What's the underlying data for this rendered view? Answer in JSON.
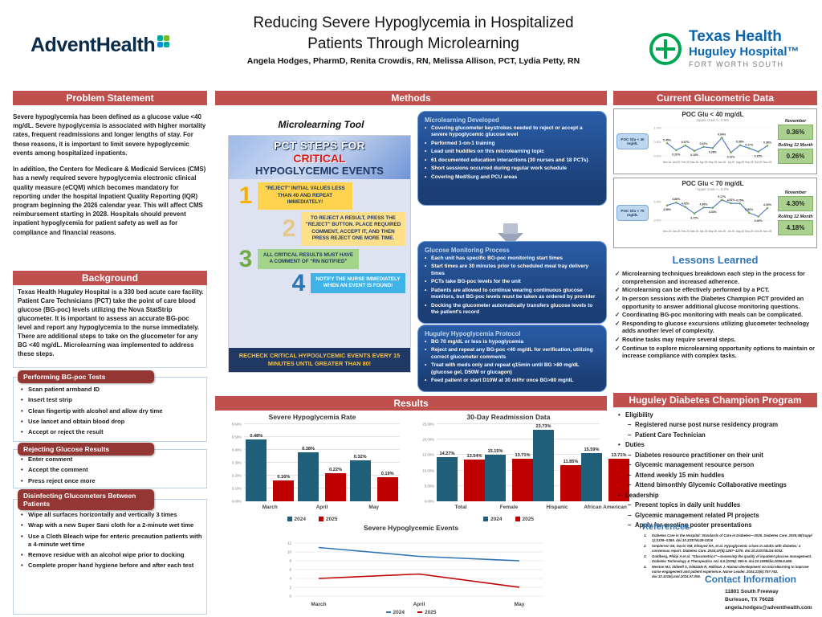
{
  "header": {
    "title_line1": "Reducing Severe Hypoglycemia in Hospitalized",
    "title_line2": "Patients Through Microlearning",
    "authors": "Angela Hodges, PharmD, Renita Crowdis, RN, Melissa Allison, PCT, Lydia Petty, RN",
    "logo_left": {
      "name": "AdventHealth"
    },
    "logo_right": {
      "line1": "Texas Health",
      "line2": "Huguley Hospital™",
      "line3": "FORT WORTH SOUTH"
    }
  },
  "colors": {
    "accent_red": "#c0504d",
    "dark_red": "#943634",
    "navy": "#1f3864",
    "blue_heading": "#2e74b5",
    "bar_2024": "#1f5f7a",
    "bar_2025": "#c00000",
    "line_2024": "#2e75b6",
    "line_2025": "#c00000",
    "line_blue": "#4472c4",
    "marker_green": "#70ad47",
    "stat_green": "#a9d08e"
  },
  "problem_statement": {
    "title": "Problem Statement",
    "para1": "Severe hypoglycemia has been defined as a glucose value <40 mg/dL. Severe hypoglycemia is associated with higher mortality rates, frequent readmissions and longer lengths of stay. For these reasons, it is important to limit severe hypoglycemic events among hospitalized inpatients.",
    "para2": "In addition, the Centers for Medicare & Medicaid Services (CMS) has a newly required severe hypoglycemia electronic clinical quality measure (eCQM) which becomes mandatory for reporting under the hospital Inpatient Quality Reporting (IQR) program beginning the 2026 calendar year. This will affect CMS reimbursement starting in 2028. Hospitals should prevent inpatient hypoglycemia for patient safety as well as for compliance and financial reasons."
  },
  "background": {
    "title": "Background",
    "text": "Texas Health Huguley Hospital is a 330 bed acute care facility. Patient Care Technicians (PCT) take the point of care blood glucose (BG-poc) levels utilizing the Nova StatStrip glucometer. It is important to assess an accurate BG-poc level and report any hypoglycemia to the nurse immediately. There are additional steps to take on the glucometer for any BG <40 mg/dL. Microlearning was implemented to address these steps."
  },
  "procedures": [
    {
      "title": "Performing BG-poc Tests",
      "bullets": [
        "Scan patient armband ID",
        "Insert test strip",
        "Clean fingertip with alcohol and allow dry time",
        "Use lancet and obtain blood drop",
        "Accept or reject the result"
      ]
    },
    {
      "title": "Rejecting Glucose Results",
      "bullets": [
        "Enter comment",
        "Accept the comment",
        "Press reject once more"
      ]
    },
    {
      "title": "Disinfecting Glucometers Between Patients",
      "bullets": [
        "Wipe all surfaces horizontally and vertically 3 times",
        "Wrap with a new Super Sani cloth for a 2-minute wet time",
        "Use a Cloth Bleach wipe for enteric precaution patients with a 4-minute wet time",
        "Remove residue with an alcohol wipe prior to docking",
        "Complete proper hand hygiene before and after each test"
      ]
    }
  ],
  "methods": {
    "title": "Methods",
    "tool_heading": "Microlearning Tool",
    "tool": {
      "header_line1": "PCT STEPS FOR",
      "header_line2": "CRITICAL",
      "header_line3": "HYPOGLYCEMIC EVENTS",
      "steps": [
        {
          "num": "1",
          "text": "\"REJECT\" INITIAL VALUES LESS THAN 40 AND REPEAT IMMEDIATELY!"
        },
        {
          "num": "2",
          "text": "TO REJECT A RESULT, PRESS THE \"REJECT\" BUTTON. PLACE REQUIRED COMMENT, ACCEPT IT, AND THEN PRESS REJECT ONE MORE TIME."
        },
        {
          "num": "3",
          "text": "ALL CRITICAL RESULTS MUST HAVE A COMMENT OF \"RN NOTIFIED\""
        },
        {
          "num": "4",
          "text": "NOTIFY THE NURSE IMMEDIATELY WHEN AN EVENT IS FOUND!"
        }
      ],
      "footer": "RECHECK CRITICAL HYPOGLYCEMIC EVENTS EVERY 15 MINUTES UNTIL GREATER THAN 80!"
    },
    "boxes": [
      {
        "title": "Microlearning Developed",
        "bullets": [
          "Covering glucometer keystrokes needed to reject or accept a severe hypoglycemic glucose level",
          "Performed 1-on-1 training",
          "Lead unit huddles on this microlearning topic",
          "61 documented education interactions (30 nurses and 18 PCTs)",
          "Short sessions occurred during regular work schedule",
          "Covering Med/Surg and PCU areas"
        ]
      },
      {
        "title": "Glucose Monitoring Process",
        "bullets": [
          "Each unit has specific BG-poc monitoring start times",
          "Start times are 30 minutes prior to scheduled meal tray delivery times",
          "PCTs take BG-poc levels for the unit",
          "Patients are allowed to continue wearing continuous glucose monitors, but BG-poc levels must be taken as ordered by provider",
          "Docking the glucometer automatically transfers glucose levels to the patient's record"
        ]
      },
      {
        "title": "Huguley Hypoglycemia Protocol",
        "bullets": [
          "BG 70 mg/dL or less is hypoglycemia",
          "Reject and repeat any BG-poc <40 mg/dL for verification, utilizing correct glucometer comments",
          "Treat with meds only and repeat q15min until BG >80 mg/dL (glucose gel, D50W or glucagon)",
          "Feed patient or start D10W at 30 ml/hr once BG>80 mg/dL"
        ]
      }
    ]
  },
  "results": {
    "title": "Results"
  },
  "glucometric": {
    "title": "Current Glucometric Data"
  },
  "chart_data": [
    {
      "id": "poc40",
      "type": "line",
      "title": "POC Glu < 40 mg/dL",
      "subtitle": "Upper Goal <=  0.5%",
      "side_label": "POC Glu < 40 mg/dL",
      "x": [
        "Dec-24",
        "Jan-25",
        "Feb-25",
        "Mar-25",
        "Apr-25",
        "May-25",
        "Jun-25",
        "Jul-25",
        "Aug-25",
        "Sep-25",
        "Oct-25",
        "Nov-25"
      ],
      "series": [
        {
          "name": "POC Glu < 40 mg/dL",
          "values": [
            0.45,
            0.2,
            0.37,
            0.18,
            0.32,
            0.28,
            0.64,
            0.12,
            0.38,
            0.27,
            0.15,
            0.36
          ]
        }
      ],
      "ylim": [
        0.0,
        1.0
      ],
      "yticks": [
        0.0,
        0.5,
        1.0
      ],
      "goal": 0.5,
      "legend_position": "none",
      "grid": true,
      "stats": [
        {
          "label": "November",
          "value": "0.36%"
        },
        {
          "label": "Rolling 12 Month",
          "value": "0.26%"
        }
      ]
    },
    {
      "id": "poc70",
      "type": "line",
      "title": "POC Glu < 70 mg/dL",
      "subtitle": "Upper Goal <=  5.0%",
      "side_label": "POC Glu < 70 mg/dL",
      "x": [
        "Dec-24",
        "Jan-25",
        "Feb-25",
        "Mar-25",
        "Apr-25",
        "May-25",
        "Jun-25",
        "Jul-25",
        "Aug-25",
        "Sep-25",
        "Oct-25",
        "Nov-25"
      ],
      "series": [
        {
          "name": "POC Glu < 70 mg/dL",
          "values": [
            4.58,
            4.88,
            4.42,
            3.72,
            4.36,
            4.33,
            5.17,
            4.81,
            4.79,
            3.8,
            3.4,
            4.3
          ]
        }
      ],
      "ylim": [
        2.5,
        5.5
      ],
      "yticks": [
        3.0,
        5.0
      ],
      "goal": 5.0,
      "legend_position": "none",
      "grid": true,
      "stats": [
        {
          "label": "November",
          "value": "4.30%"
        },
        {
          "label": "Rolling 12 Month",
          "value": "4.18%"
        }
      ]
    },
    {
      "id": "rate",
      "type": "bar",
      "title": "Severe Hypoglycemia Rate",
      "categories": [
        "March",
        "April",
        "May"
      ],
      "series": [
        {
          "name": "2024",
          "values": [
            0.48,
            0.38,
            0.32
          ]
        },
        {
          "name": "2025",
          "values": [
            0.16,
            0.22,
            0.19
          ]
        }
      ],
      "ylim": [
        0,
        0.6
      ],
      "ystep": 0.1,
      "value_suffix": "%",
      "decimals": 2,
      "grid": true,
      "legend_position": "bottom"
    },
    {
      "id": "readmission",
      "type": "bar",
      "title": "30-Day Readmission Data",
      "categories": [
        "Total",
        "Female",
        "Hispanic",
        "African American"
      ],
      "series": [
        {
          "name": "2024",
          "values": [
            14.27,
            15.15,
            23.73,
            15.59
          ]
        },
        {
          "name": "2025",
          "values": [
            13.54,
            13.71,
            11.85,
            13.71
          ]
        }
      ],
      "ylim": [
        0,
        25
      ],
      "ystep": 5,
      "value_suffix": "%",
      "decimals": 2,
      "grid": true,
      "legend_position": "bottom"
    },
    {
      "id": "events",
      "type": "line",
      "title": "Severe Hypoglycemic Events",
      "x": [
        "March",
        "April",
        "May"
      ],
      "series": [
        {
          "name": "2024",
          "values": [
            11,
            9,
            8
          ]
        },
        {
          "name": "2025",
          "values": [
            4,
            5,
            2
          ]
        }
      ],
      "ylim": [
        0,
        12
      ],
      "ystep": 2,
      "grid": true,
      "legend_position": "bottom"
    }
  ],
  "lessons": {
    "title": "Lessons Learned",
    "items": [
      "Microlearning techniques breakdown each step in the process for comprehension and increased adherence.",
      "Microlearning can be effectively performed by a PCT.",
      "In-person sessions with the Diabetes Champion PCT provided an opportunity to answer additional glucose monitoring questions.",
      "Coordinating BG-poc monitoring with meals can be complicated.",
      "Responding to glucose excursions utilizing glucometer technology adds another level of complexity.",
      "Routine tasks may require several steps.",
      "Continue to explore microlearning opportunity options to maintain or increase compliance with complex tasks."
    ]
  },
  "program": {
    "title": "Huguley Diabetes Champion Program",
    "groups": [
      {
        "label": "Eligibility",
        "items": [
          "Registered nurse post nurse residency program",
          "Patient Care Technician"
        ]
      },
      {
        "label": "Duties",
        "items": [
          "Diabetes resource practitioner on their unit",
          "Glycemic management resource person",
          "Attend weekly 15 min huddles",
          "Attend bimonthly Glycemic Collaborative meetings"
        ]
      },
      {
        "label": "Leadership",
        "items": [
          "Present topics in daily unit huddles",
          "Glycemic management related PI projects",
          "Apply for meeting poster presentations"
        ]
      }
    ]
  },
  "references": {
    "title": "References",
    "items": [
      "Diabetes Care in the Hospital: Standards of Care in Diabetes—2026. Diabetes Care. 2026;49(Suppl 1):S339–S355. doi:10.2337/dc26-S016",
      "Umpierrez GE, Davis GM, ElSayed NA, et al. Hypoglycemic crises in adults with diabetes: a consensus report. Diabetes Care. 2024;47(8):1257–1275. doi:10.2337/dci24-0032.",
      "Goldberg, Philip A et al. \"Glucometrics\"—assessing the quality of inpatient glucose management. Diabetes Technology & Therapeutics vol. 8,5 (2006): 560-9. doi:10.1089/dia.2006.8.560.",
      "Weston MJ, Stilwell S, DiMatale R, Hallinan J. Human development via microlearning to improve nurse engagement and patient experience. Nurse Leader. 2024;22(6):757-762. doi:10.1016/j.mnl.2024.07.006."
    ]
  },
  "contact": {
    "title": "Contact Information",
    "lines": [
      "11801 South Freeway",
      "Burleson, TX 76028",
      "angela.hodges@adventhealth.com"
    ]
  }
}
